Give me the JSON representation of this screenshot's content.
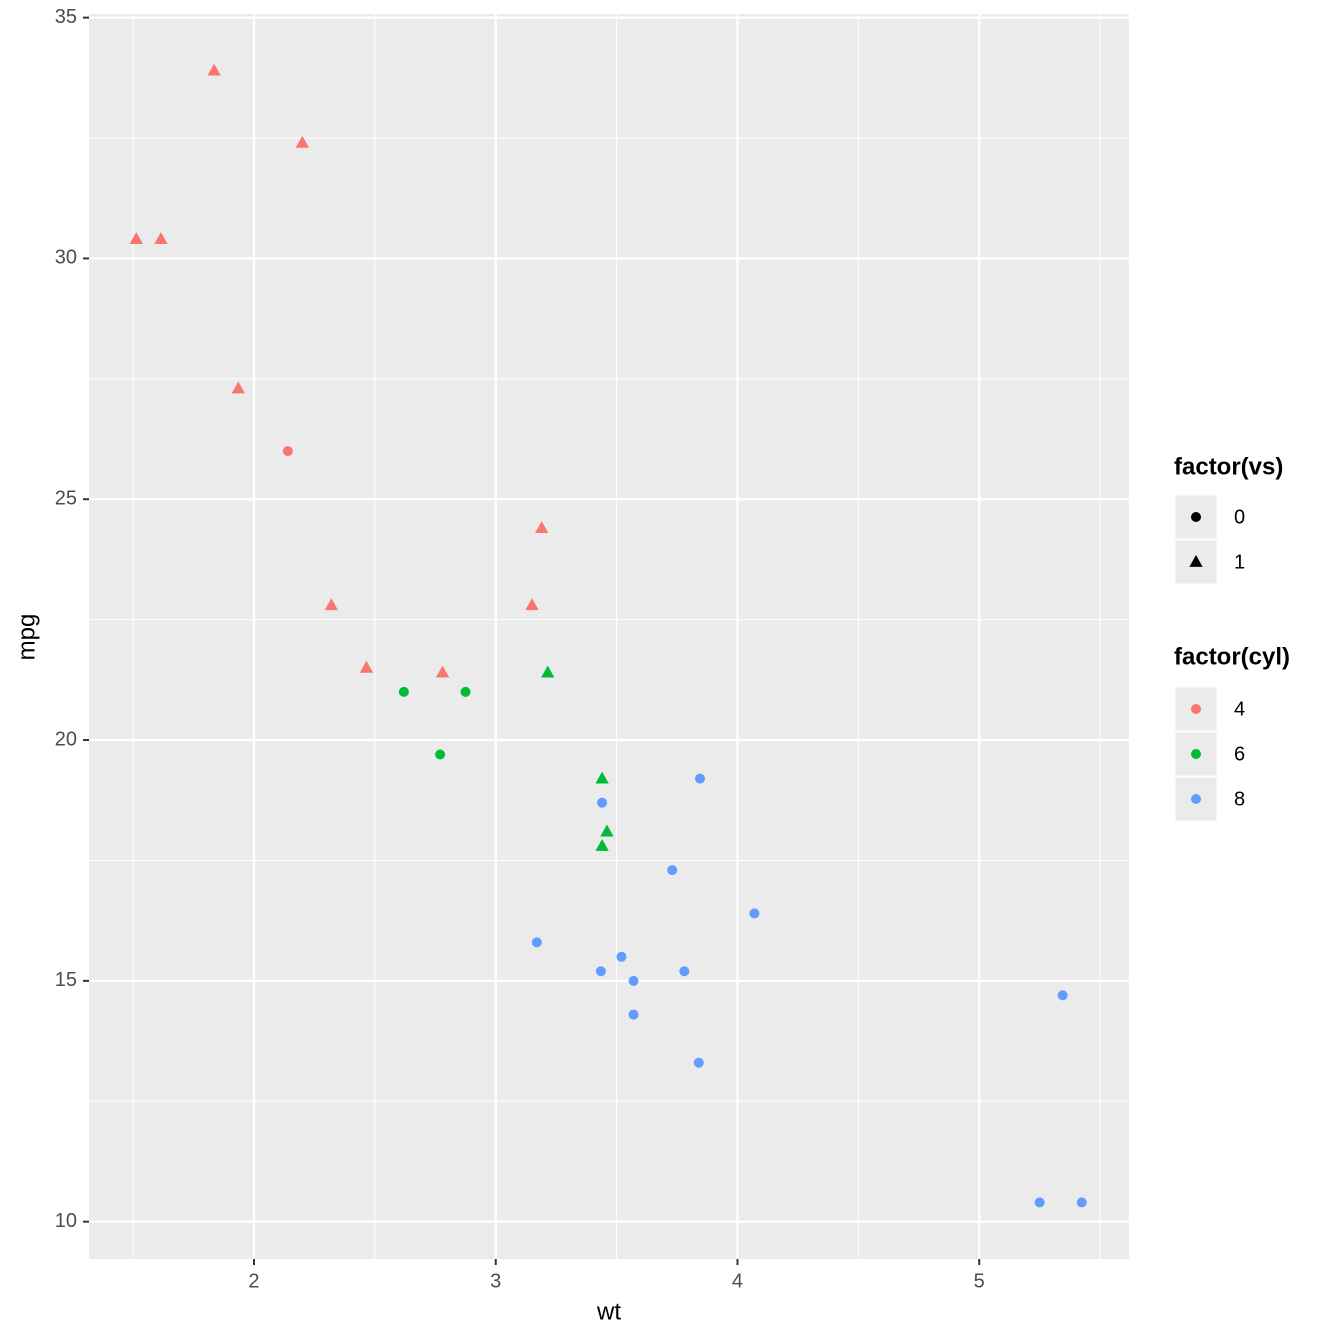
{
  "chart_data": {
    "type": "scatter",
    "x_label": "wt",
    "y_label": "mpg",
    "xlim": [
      1.3175,
      5.6195
    ],
    "ylim": [
      9.225,
      35.075
    ],
    "xticks": [
      2,
      3,
      4,
      5
    ],
    "yticks": [
      10,
      15,
      20,
      25,
      30,
      35
    ],
    "xminor": [
      1.5,
      2.5,
      3.5,
      4.5,
      5.5
    ],
    "yminor": [
      12.5,
      17.5,
      22.5,
      27.5,
      32.5
    ],
    "grid": true,
    "shape_legend": {
      "title": "factor(vs)",
      "levels": [
        "0",
        "1"
      ],
      "shapes": [
        "circle",
        "triangle"
      ]
    },
    "color_legend_title": "factor(cyl)",
    "series": [
      {
        "name": "4",
        "color": "#F8766D",
        "x": [
          2.32,
          3.19,
          3.15,
          2.2,
          1.615,
          1.835,
          2.465,
          1.935,
          2.14,
          1.513,
          2.78
        ],
        "values": [
          22.8,
          24.4,
          22.8,
          32.4,
          30.4,
          33.9,
          21.5,
          27.3,
          26.0,
          30.4,
          21.4
        ],
        "vs": [
          "1",
          "1",
          "1",
          "1",
          "1",
          "1",
          "1",
          "1",
          "0",
          "1",
          "1"
        ]
      },
      {
        "name": "6",
        "color": "#00BA38",
        "x": [
          2.62,
          2.875,
          3.215,
          3.46,
          3.44,
          3.44,
          2.77
        ],
        "values": [
          21.0,
          21.0,
          21.4,
          18.1,
          19.2,
          17.8,
          19.7
        ],
        "vs": [
          "0",
          "0",
          "1",
          "1",
          "1",
          "1",
          "0"
        ]
      },
      {
        "name": "8",
        "color": "#619CFF",
        "x": [
          3.44,
          3.57,
          4.07,
          3.73,
          3.78,
          5.25,
          5.424,
          5.345,
          3.52,
          3.435,
          3.84,
          3.845,
          3.17,
          3.57
        ],
        "values": [
          18.7,
          14.3,
          16.4,
          17.3,
          15.2,
          10.4,
          10.4,
          14.7,
          15.5,
          15.2,
          13.3,
          19.2,
          15.8,
          15.0
        ],
        "vs": [
          "0",
          "0",
          "0",
          "0",
          "0",
          "0",
          "0",
          "0",
          "0",
          "0",
          "0",
          "0",
          "0",
          "0"
        ]
      }
    ]
  }
}
